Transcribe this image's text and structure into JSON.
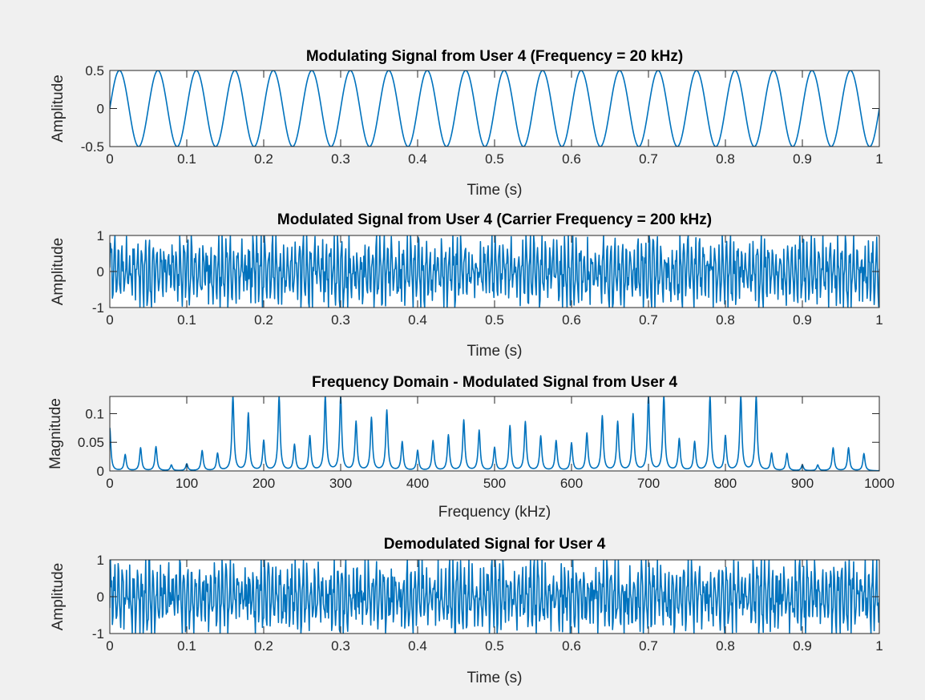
{
  "figure": {
    "background": "#f0f0f0",
    "axes_background": "#ffffff",
    "line_color": "#0072bd",
    "axis_color": "#262626"
  },
  "chart_data": [
    {
      "type": "line",
      "title": "Modulating Signal from User 4 (Frequency = 20 kHz)",
      "xlabel": "Time (s)",
      "ylabel": "Amplitude",
      "xlim": [
        0,
        1
      ],
      "ylim": [
        -0.5,
        0.5
      ],
      "xticks": [
        0,
        0.1,
        0.2,
        0.3,
        0.4,
        0.5,
        0.6,
        0.7,
        0.8,
        0.9,
        1
      ],
      "xtick_labels": [
        "0",
        "0.1",
        "0.2",
        "0.3",
        "0.4",
        "0.5",
        "0.6",
        "0.7",
        "0.8",
        "0.9",
        "1"
      ],
      "yticks": [
        -0.5,
        0,
        0.5
      ],
      "ytick_labels": [
        "-0.5",
        "0",
        "0.5"
      ],
      "grid": false,
      "series": [
        {
          "signal": "sine",
          "amplitude": 0.5,
          "cycles": 20,
          "samples": 1201
        }
      ]
    },
    {
      "type": "line",
      "title": "Modulated Signal from User 4 (Carrier Frequency = 200 kHz)",
      "xlabel": "Time (s)",
      "ylabel": "Amplitude",
      "xlim": [
        0,
        1
      ],
      "ylim": [
        -1,
        1
      ],
      "xticks": [
        0,
        0.1,
        0.2,
        0.3,
        0.4,
        0.5,
        0.6,
        0.7,
        0.8,
        0.9,
        1
      ],
      "xtick_labels": [
        "0",
        "0.1",
        "0.2",
        "0.3",
        "0.4",
        "0.5",
        "0.6",
        "0.7",
        "0.8",
        "0.9",
        "1"
      ],
      "yticks": [
        -1,
        0,
        1
      ],
      "ytick_labels": [
        "-1",
        "0",
        "1"
      ],
      "grid": false,
      "series": [
        {
          "signal": "dense-oscillation",
          "amplitude": 1,
          "carrier_cycles": 200,
          "message_cycles": 20,
          "samples": 1201
        }
      ]
    },
    {
      "type": "line",
      "title": "Frequency Domain - Modulated Signal from User 4",
      "xlabel": "Frequency (kHz)",
      "ylabel": "Magnitude",
      "xlim": [
        0,
        1000
      ],
      "ylim": [
        0,
        0.13
      ],
      "xticks": [
        0,
        100,
        200,
        300,
        400,
        500,
        600,
        700,
        800,
        900,
        1000
      ],
      "xtick_labels": [
        "0",
        "100",
        "200",
        "300",
        "400",
        "500",
        "600",
        "700",
        "800",
        "900",
        "1000"
      ],
      "yticks": [
        0,
        0.05,
        0.1
      ],
      "ytick_labels": [
        "0",
        "0.05",
        "0.1"
      ],
      "grid": false,
      "series": [
        {
          "signal": "spectrum",
          "peaks": [
            [
              0,
              0.075
            ],
            [
              20,
              0.028
            ],
            [
              40,
              0.04
            ],
            [
              60,
              0.042
            ],
            [
              80,
              0.01
            ],
            [
              100,
              0.012
            ],
            [
              120,
              0.035
            ],
            [
              140,
              0.03
            ],
            [
              160,
              0.13
            ],
            [
              180,
              0.1
            ],
            [
              200,
              0.052
            ],
            [
              220,
              0.13
            ],
            [
              240,
              0.045
            ],
            [
              260,
              0.06
            ],
            [
              280,
              0.13
            ],
            [
              300,
              0.13
            ],
            [
              320,
              0.085
            ],
            [
              340,
              0.092
            ],
            [
              360,
              0.105
            ],
            [
              380,
              0.05
            ],
            [
              400,
              0.035
            ],
            [
              420,
              0.052
            ],
            [
              440,
              0.062
            ],
            [
              460,
              0.088
            ],
            [
              480,
              0.07
            ],
            [
              500,
              0.04
            ],
            [
              520,
              0.078
            ],
            [
              540,
              0.085
            ],
            [
              560,
              0.06
            ],
            [
              580,
              0.052
            ],
            [
              600,
              0.048
            ],
            [
              620,
              0.065
            ],
            [
              640,
              0.095
            ],
            [
              660,
              0.085
            ],
            [
              680,
              0.098
            ],
            [
              700,
              0.13
            ],
            [
              720,
              0.13
            ],
            [
              740,
              0.055
            ],
            [
              760,
              0.05
            ],
            [
              780,
              0.13
            ],
            [
              800,
              0.06
            ],
            [
              820,
              0.13
            ],
            [
              840,
              0.13
            ],
            [
              860,
              0.03
            ],
            [
              880,
              0.03
            ],
            [
              900,
              0.01
            ],
            [
              920,
              0.01
            ],
            [
              940,
              0.04
            ],
            [
              960,
              0.04
            ],
            [
              980,
              0.03
            ]
          ]
        }
      ]
    },
    {
      "type": "line",
      "title": "Demodulated Signal for User 4",
      "xlabel": "Time (s)",
      "ylabel": "Amplitude",
      "xlim": [
        0,
        1
      ],
      "ylim": [
        -1,
        1
      ],
      "xticks": [
        0,
        0.1,
        0.2,
        0.3,
        0.4,
        0.5,
        0.6,
        0.7,
        0.8,
        0.9,
        1
      ],
      "xtick_labels": [
        "0",
        "0.1",
        "0.2",
        "0.3",
        "0.4",
        "0.5",
        "0.6",
        "0.7",
        "0.8",
        "0.9",
        "1"
      ],
      "yticks": [
        -1,
        0,
        1
      ],
      "ytick_labels": [
        "-1",
        "0",
        "1"
      ],
      "grid": false,
      "series": [
        {
          "signal": "dense-oscillation",
          "amplitude": 1,
          "carrier_cycles": 200,
          "message_cycles": 20,
          "samples": 1201
        }
      ]
    }
  ]
}
